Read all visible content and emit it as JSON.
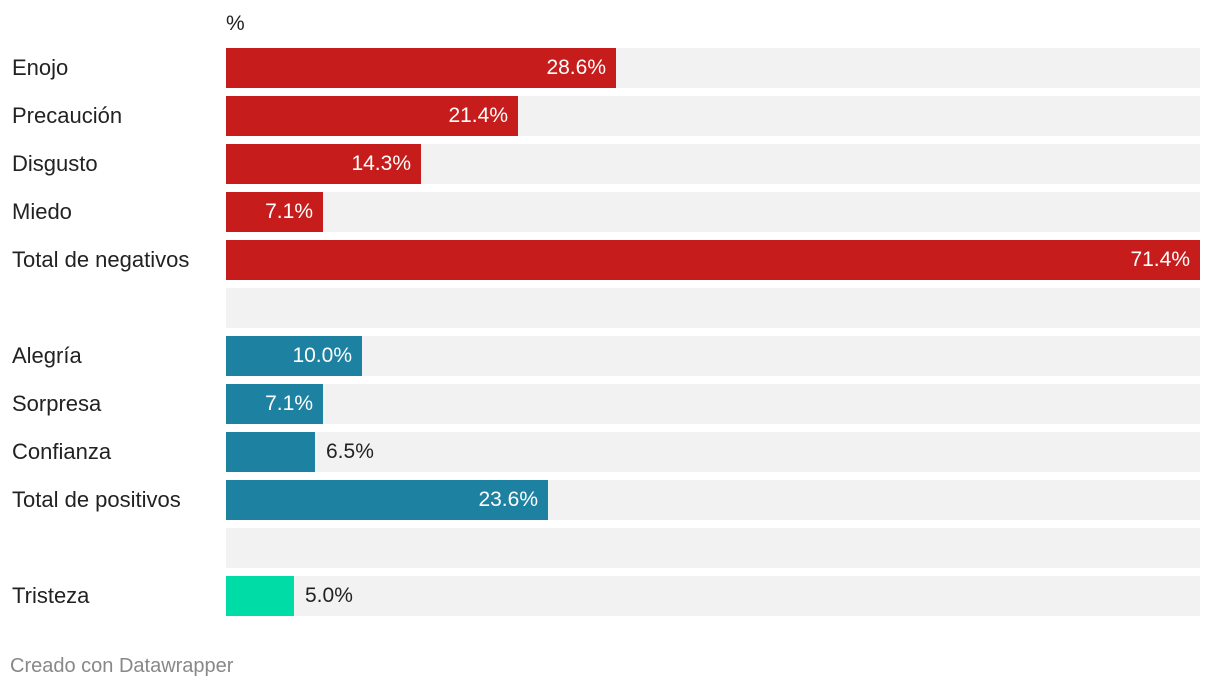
{
  "chart_data": {
    "type": "bar",
    "orientation": "horizontal",
    "unit_label": "%",
    "xlim": [
      0,
      71.4
    ],
    "rows": [
      {
        "label": "Enojo",
        "value": 28.6,
        "value_label": "28.6%",
        "color": "#c71c1c"
      },
      {
        "label": "Precaución",
        "value": 21.4,
        "value_label": "21.4%",
        "color": "#c71c1c"
      },
      {
        "label": "Disgusto",
        "value": 14.3,
        "value_label": "14.3%",
        "color": "#c71c1c"
      },
      {
        "label": "Miedo",
        "value": 7.1,
        "value_label": "7.1%",
        "color": "#c71c1c"
      },
      {
        "label": "Total de negativos",
        "value": 71.4,
        "value_label": "71.4%",
        "color": "#c71c1c"
      },
      {
        "label": "",
        "value": null,
        "value_label": "",
        "color": ""
      },
      {
        "label": "Alegría",
        "value": 10.0,
        "value_label": "10.0%",
        "color": "#1d81a2"
      },
      {
        "label": "Sorpresa",
        "value": 7.1,
        "value_label": "7.1%",
        "color": "#1d81a2"
      },
      {
        "label": "Confianza",
        "value": 6.5,
        "value_label": "6.5%",
        "color": "#1d81a2"
      },
      {
        "label": "Total de positivos",
        "value": 23.6,
        "value_label": "23.6%",
        "color": "#1d81a2"
      },
      {
        "label": "",
        "value": null,
        "value_label": "",
        "color": ""
      },
      {
        "label": "Tristeza",
        "value": 5.0,
        "value_label": "5.0%",
        "color": "#00dca6"
      }
    ]
  },
  "footer": "Creado con Datawrapper"
}
